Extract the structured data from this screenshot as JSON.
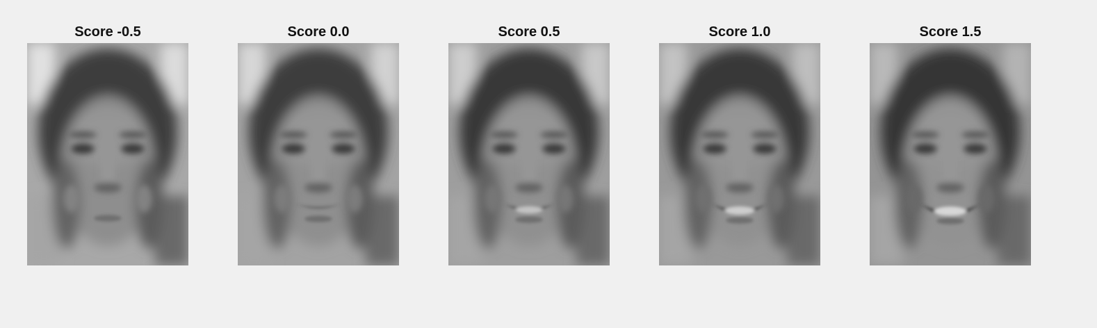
{
  "panels": [
    {
      "title": "Score -0.5",
      "score": -0.5
    },
    {
      "title": "Score 0.0",
      "score": 0.0
    },
    {
      "title": "Score 0.5",
      "score": 0.5
    },
    {
      "title": "Score 1.0",
      "score": 1.0
    },
    {
      "title": "Score 1.5",
      "score": 1.5
    }
  ],
  "colors": {
    "background": "#f0f0f0",
    "title": "#111111"
  }
}
